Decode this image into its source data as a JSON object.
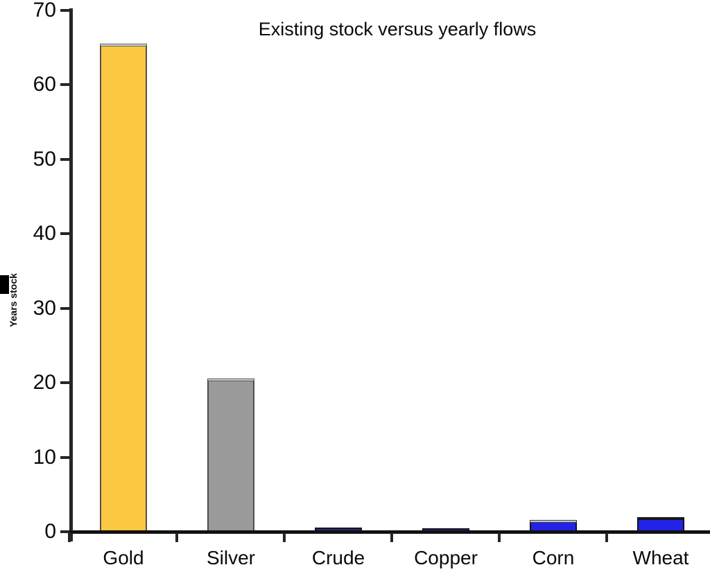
{
  "figure": {
    "title": "Existing stock versus yearly flows",
    "y_axis_label": "Years stock"
  },
  "chart_data": {
    "type": "bar",
    "title": "Existing stock versus yearly flows",
    "xlabel": "",
    "ylabel": "Years stock",
    "categories": [
      "Gold",
      "Silver",
      "Crude",
      "Copper",
      "Corn",
      "Wheat"
    ],
    "values": [
      65.3,
      20.4,
      0.6,
      0.5,
      1.4,
      1.8
    ],
    "ylim": [
      0,
      70
    ],
    "y_ticks": [
      0,
      10,
      20,
      30,
      40,
      50,
      60,
      70
    ],
    "grid": false,
    "legend_position": "none",
    "bar_styles": [
      {
        "fill": "#FCC843",
        "border": "#5a5142",
        "cap_fill": "#d9d9d9",
        "cap_border": "#555555"
      },
      {
        "fill": "#9A9A9A",
        "border": "#4d4d4d",
        "cap_fill": "#cfcfcf",
        "cap_border": "#555555"
      },
      {
        "fill": "#2B2B66",
        "border": "#14142e",
        "cap_fill": "",
        "cap_border": ""
      },
      {
        "fill": "#2B2B66",
        "border": "#14142e",
        "cap_fill": "",
        "cap_border": ""
      },
      {
        "fill": "#2323E8",
        "border": "#111111",
        "cap_fill": "#c4c4cc",
        "cap_border": "#444444"
      },
      {
        "fill": "#2323E8",
        "border": "#111111",
        "cap_fill": "#1a1a1a",
        "cap_border": "#111111"
      }
    ],
    "colors": {
      "axis": "#262626",
      "background": "#ffffff",
      "text": "#0a0a0a"
    }
  }
}
